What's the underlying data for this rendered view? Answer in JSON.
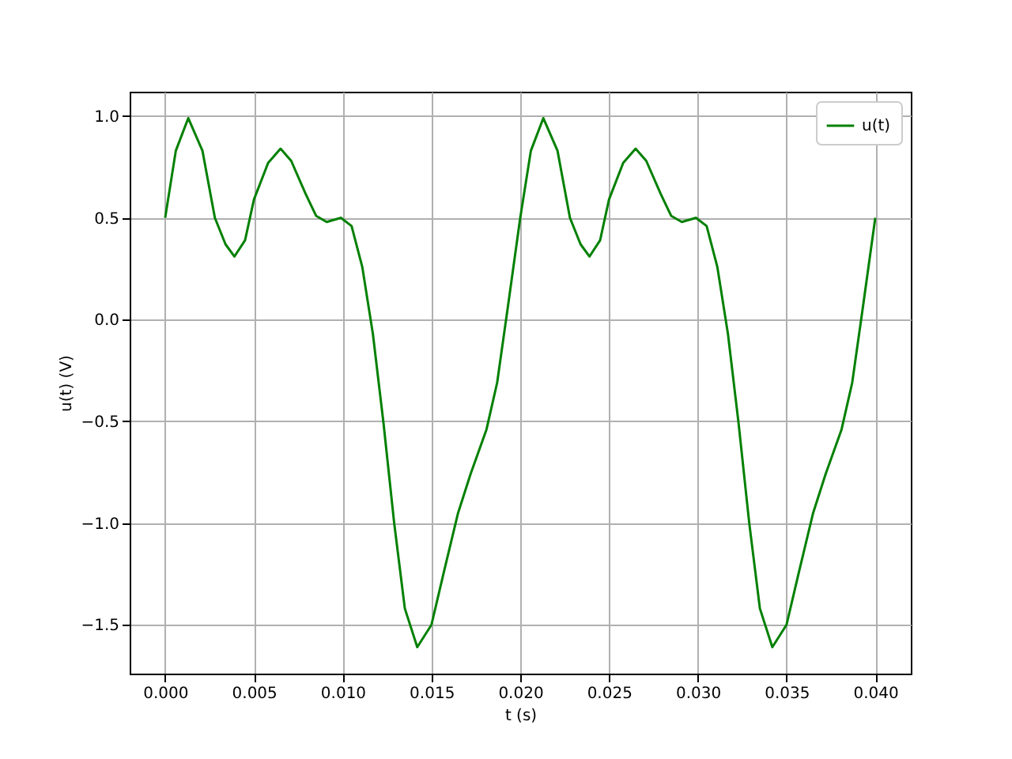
{
  "chart_data": {
    "type": "line",
    "xlabel": "t (s)",
    "ylabel": "u(t) (V)",
    "x": [
      0,
      0.0006,
      0.0013,
      0.0021,
      0.0028,
      0.0034,
      0.0039,
      0.0045,
      0.005,
      0.0058,
      0.0065,
      0.0071,
      0.0079,
      0.0085,
      0.0091,
      0.0099,
      0.0105,
      0.0111,
      0.0117,
      0.0123,
      0.0129,
      0.0135,
      0.0142,
      0.015,
      0.0157,
      0.0165,
      0.0172,
      0.0181,
      0.0187,
      0.0193,
      0.02,
      0.0206,
      0.0213,
      0.0221,
      0.0228,
      0.0234,
      0.0239,
      0.0245,
      0.025,
      0.0258,
      0.0265,
      0.0271,
      0.0279,
      0.0285,
      0.0291,
      0.0299,
      0.0305,
      0.0311,
      0.0317,
      0.0323,
      0.0329,
      0.0335,
      0.0342,
      0.035,
      0.0357,
      0.0365,
      0.0372,
      0.0381,
      0.0387,
      0.0393,
      0.04
    ],
    "series": [
      {
        "name": "u(t)",
        "color": "#008000",
        "values": [
          0.5,
          0.83,
          0.99,
          0.83,
          0.5,
          0.37,
          0.31,
          0.39,
          0.59,
          0.77,
          0.84,
          0.78,
          0.62,
          0.51,
          0.48,
          0.5,
          0.46,
          0.26,
          -0.07,
          -0.51,
          -1.0,
          -1.42,
          -1.61,
          -1.5,
          -1.24,
          -0.95,
          -0.76,
          -0.54,
          -0.31,
          0.06,
          0.5,
          0.83,
          0.99,
          0.83,
          0.5,
          0.37,
          0.31,
          0.39,
          0.59,
          0.77,
          0.84,
          0.78,
          0.62,
          0.51,
          0.48,
          0.5,
          0.46,
          0.26,
          -0.07,
          -0.51,
          -1.0,
          -1.42,
          -1.61,
          -1.5,
          -1.24,
          -0.95,
          -0.76,
          -0.54,
          -0.31,
          0.06,
          0.5
        ]
      }
    ],
    "xlim": [
      -0.002,
      0.042
    ],
    "ylim": [
      -1.74,
      1.12
    ],
    "xticks": [
      {
        "value": 0,
        "label": "0.000"
      },
      {
        "value": 0.005,
        "label": "0.005"
      },
      {
        "value": 0.01,
        "label": "0.010"
      },
      {
        "value": 0.015,
        "label": "0.015"
      },
      {
        "value": 0.02,
        "label": "0.020"
      },
      {
        "value": 0.025,
        "label": "0.025"
      },
      {
        "value": 0.03,
        "label": "0.030"
      },
      {
        "value": 0.035,
        "label": "0.035"
      },
      {
        "value": 0.04,
        "label": "0.040"
      }
    ],
    "yticks": [
      {
        "value": -1.5,
        "label": "−1.5"
      },
      {
        "value": -1,
        "label": "−1.0"
      },
      {
        "value": -0.5,
        "label": "−0.5"
      },
      {
        "value": 0,
        "label": "0.0"
      },
      {
        "value": 0.5,
        "label": "0.5"
      },
      {
        "value": 1,
        "label": "1.0"
      }
    ],
    "grid": true,
    "legend": "top right",
    "line_style": "solid"
  }
}
